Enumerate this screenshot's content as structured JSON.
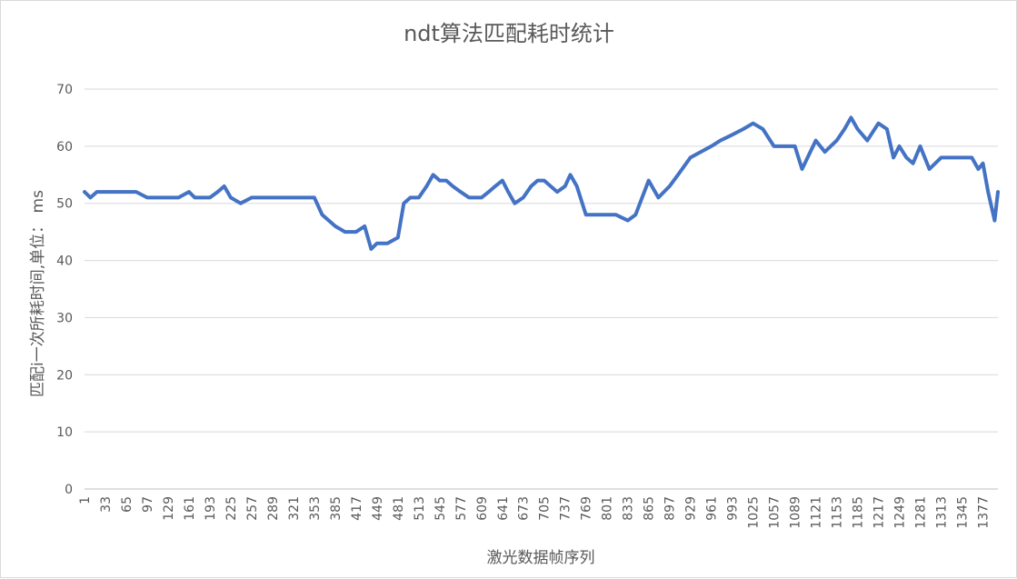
{
  "chart_data": {
    "type": "line",
    "title": "ndt算法匹配耗时统计",
    "xlabel": "激光数据帧序列",
    "ylabel": "匹配i一次所耗时间,单位： ms",
    "ylim": [
      0,
      70
    ],
    "yticks": [
      "0",
      "10",
      "20",
      "30",
      "40",
      "50",
      "60",
      "70"
    ],
    "xlim": [
      1,
      1400
    ],
    "xticks": [
      "1",
      "33",
      "65",
      "97",
      "129",
      "161",
      "193",
      "225",
      "257",
      "289",
      "321",
      "353",
      "385",
      "417",
      "449",
      "481",
      "513",
      "545",
      "577",
      "609",
      "641",
      "673",
      "705",
      "737",
      "769",
      "801",
      "833",
      "865",
      "897",
      "929",
      "961",
      "993",
      "1025",
      "1057",
      "1089",
      "1121",
      "1153",
      "1185",
      "1217",
      "1249",
      "1281",
      "1313",
      "1345",
      "1377"
    ],
    "grid": true,
    "legend": "none",
    "series_color": "#4472c4",
    "series": [
      {
        "x": [
          1,
          10,
          20,
          33,
          45,
          55,
          65,
          80,
          97,
          110,
          129,
          145,
          161,
          170,
          180,
          193,
          205,
          215,
          225,
          240,
          257,
          270,
          289,
          305,
          321,
          335,
          353,
          365,
          385,
          400,
          417,
          430,
          440,
          449,
          465,
          481,
          490,
          500,
          513,
          525,
          535,
          545,
          555,
          565,
          577,
          590,
          600,
          609,
          620,
          630,
          641,
          650,
          660,
          673,
          685,
          695,
          705,
          715,
          725,
          737,
          745,
          755,
          769,
          780,
          801,
          815,
          833,
          845,
          855,
          865,
          880,
          897,
          910,
          929,
          945,
          961,
          975,
          993,
          1010,
          1025,
          1040,
          1057,
          1070,
          1089,
          1100,
          1121,
          1135,
          1153,
          1165,
          1175,
          1185,
          1200,
          1217,
          1230,
          1240,
          1249,
          1260,
          1270,
          1281,
          1295,
          1313,
          1325,
          1345,
          1360,
          1370,
          1377,
          1385,
          1395,
          1400
        ],
        "y": [
          52,
          51,
          52,
          52,
          52,
          52,
          52,
          52,
          51,
          51,
          51,
          51,
          52,
          51,
          51,
          51,
          52,
          53,
          51,
          50,
          51,
          51,
          51,
          51,
          51,
          51,
          51,
          48,
          46,
          45,
          45,
          46,
          42,
          43,
          43,
          44,
          50,
          51,
          51,
          53,
          55,
          54,
          54,
          53,
          52,
          51,
          51,
          51,
          52,
          53,
          54,
          52,
          50,
          51,
          53,
          54,
          54,
          53,
          52,
          53,
          55,
          53,
          48,
          48,
          48,
          48,
          47,
          48,
          51,
          54,
          51,
          53,
          55,
          58,
          59,
          60,
          61,
          62,
          63,
          64,
          63,
          60,
          60,
          60,
          56,
          61,
          59,
          61,
          63,
          65,
          63,
          61,
          64,
          63,
          58,
          60,
          58,
          57,
          60,
          56,
          58,
          58,
          58,
          58,
          56,
          57,
          52,
          47,
          52
        ]
      }
    ]
  }
}
